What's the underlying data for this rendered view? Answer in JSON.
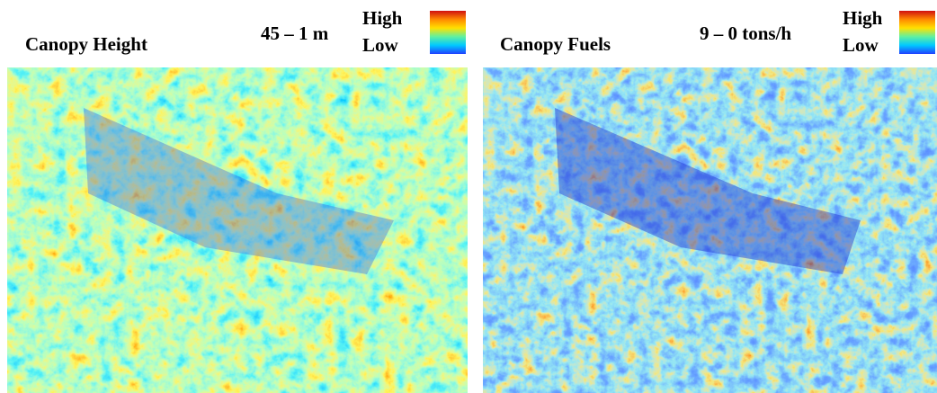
{
  "panels": [
    {
      "title": "Canopy Height",
      "range": "45 – 1 m",
      "legend_high": "High",
      "legend_low": "Low"
    },
    {
      "title": "Canopy Fuels",
      "range": "9 – 0 tons/h",
      "legend_high": "High",
      "legend_low": "Low"
    }
  ]
}
